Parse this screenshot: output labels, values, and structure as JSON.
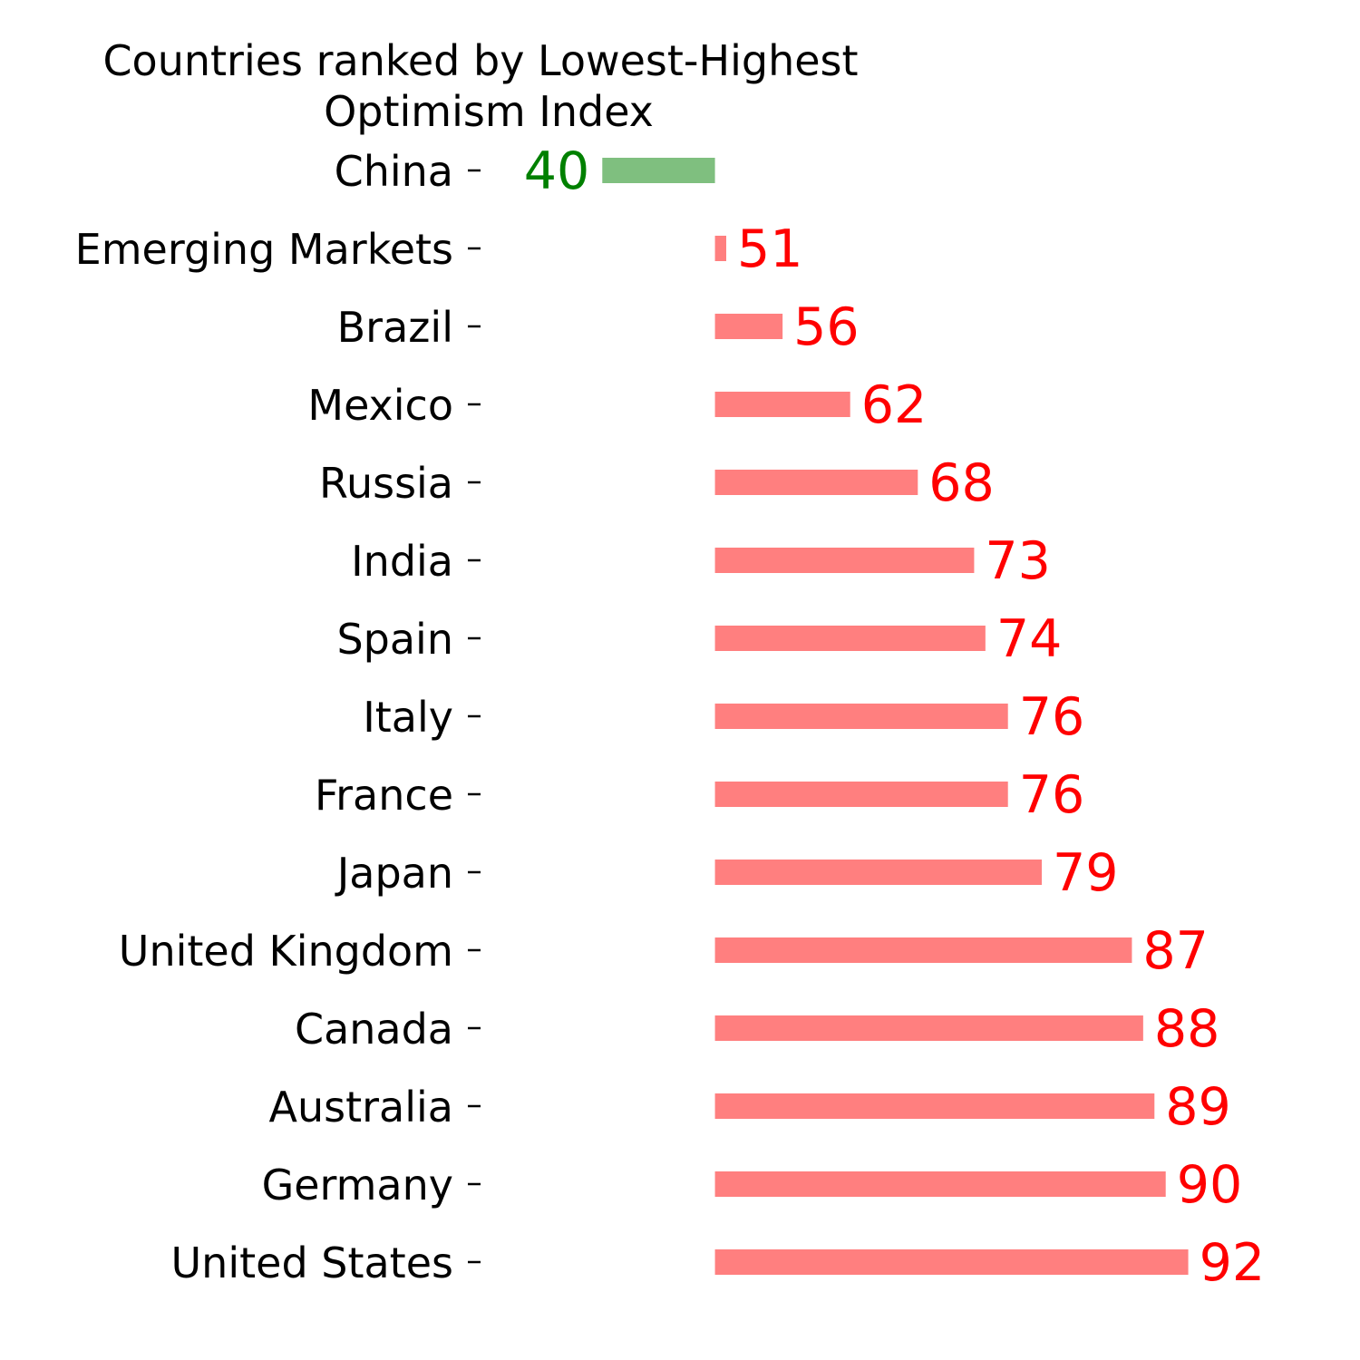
{
  "chart_data": {
    "type": "bar",
    "orientation": "horizontal",
    "title_lines": [
      "Countries ranked by Lowest-Highest",
      "Optimism Index"
    ],
    "categories": [
      "China",
      "Emerging Markets",
      "Brazil",
      "Mexico",
      "Russia",
      "India",
      "Spain",
      "Italy",
      "France",
      "Japan",
      "United Kingdom",
      "Canada",
      "Australia",
      "Germany",
      "United States"
    ],
    "values": [
      40,
      51,
      56,
      62,
      68,
      73,
      74,
      76,
      76,
      79,
      87,
      88,
      89,
      90,
      92
    ],
    "value_labels": [
      "40",
      "51",
      "56",
      "62",
      "68",
      "73",
      "74",
      "76",
      "76",
      "79",
      "87",
      "88",
      "89",
      "90",
      "92"
    ],
    "baseline": 50,
    "xlim": [
      30,
      100
    ],
    "below_baseline_color": "#008000",
    "above_baseline_color": "#ff0000",
    "bar_opacity": 0.5,
    "grid": false,
    "axes_visible": false
  }
}
